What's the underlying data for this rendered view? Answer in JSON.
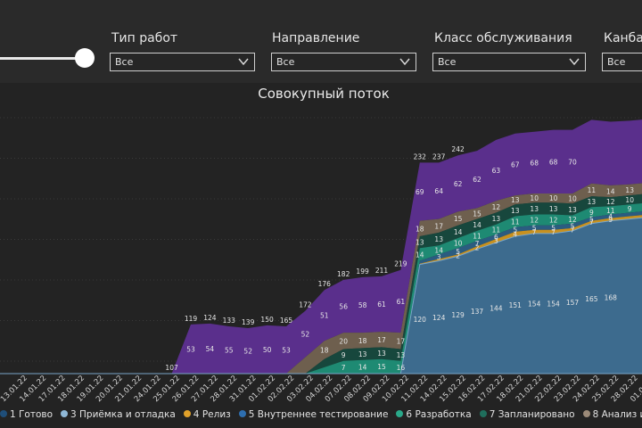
{
  "filters": [
    {
      "label": "Тип работ",
      "value": "Все"
    },
    {
      "label": "Направление",
      "value": "Все"
    },
    {
      "label": "Класс обслуживания",
      "value": "Все"
    },
    {
      "label": "Канбан",
      "value": "Все"
    }
  ],
  "chart_data": {
    "type": "area",
    "title": "Совокупный поток",
    "stacked": true,
    "x": [
      "13.01.22",
      "14.01.22",
      "17.01.22",
      "18.01.22",
      "19.01.22",
      "20.01.22",
      "21.01.22",
      "24.01.22",
      "25.01.22",
      "26.01.22",
      "27.01.22",
      "28.01.22",
      "31.01.22",
      "01.02.22",
      "02.02.22",
      "03.02.22",
      "04.02.22",
      "07.02.22",
      "08.02.22",
      "09.02.22",
      "10.02.22",
      "11.02.22",
      "14.02.22",
      "15.02.22",
      "16.02.22",
      "17.02.22",
      "18.02.22",
      "21.02.22",
      "22.02.22",
      "23.02.22",
      "24.02.22",
      "25.02.22",
      "28.02.22",
      "01.03.22",
      "02.03.22"
    ],
    "series": [
      {
        "name": "1 Готово",
        "color": "#1f4e79",
        "values": [
          0,
          0,
          0,
          0,
          0,
          0,
          0,
          0,
          0,
          0,
          0,
          0,
          0,
          0,
          0,
          0,
          0,
          0,
          0,
          0,
          0,
          0,
          0,
          0,
          0,
          0,
          0,
          0,
          0,
          0,
          0,
          0,
          0,
          0,
          0
        ]
      },
      {
        "name": "3 Приёмка и отладка",
        "color": "#3d6b8e",
        "values": [
          0,
          0,
          0,
          0,
          0,
          0,
          0,
          0,
          0,
          0,
          0,
          0,
          0,
          0,
          0,
          0,
          0,
          0,
          0,
          0,
          0,
          0,
          120,
          124,
          129,
          137,
          144,
          151,
          154,
          154,
          157,
          165,
          168,
          170,
          172
        ]
      },
      {
        "name": "4 Релиз",
        "color": "#c8911f",
        "values": [
          0,
          0,
          0,
          0,
          0,
          0,
          0,
          0,
          0,
          0,
          0,
          0,
          0,
          0,
          0,
          0,
          0,
          0,
          0,
          0,
          0,
          0,
          1,
          2,
          2,
          3,
          4,
          5,
          4,
          4,
          3,
          3,
          3,
          3,
          3
        ]
      },
      {
        "name": "5 Внутреннее тестирование",
        "color": "#2b5c80",
        "values": [
          0,
          0,
          0,
          0,
          0,
          0,
          0,
          0,
          0,
          0,
          0,
          0,
          0,
          0,
          0,
          0,
          0,
          0,
          0,
          0,
          0,
          0,
          3,
          5,
          7,
          6,
          5,
          5,
          5,
          5,
          5,
          4,
          4,
          4,
          4
        ]
      },
      {
        "name": "6 Разработка",
        "color": "#1e8a73",
        "values": [
          0,
          0,
          0,
          0,
          0,
          0,
          0,
          0,
          0,
          0,
          0,
          0,
          0,
          0,
          0,
          0,
          0,
          7,
          14,
          15,
          16,
          14,
          14,
          10,
          11,
          11,
          11,
          12,
          12,
          12,
          9,
          11,
          9,
          9,
          9
        ]
      },
      {
        "name": "7 Запланировано",
        "color": "#17473d",
        "values": [
          0,
          0,
          0,
          0,
          0,
          0,
          0,
          0,
          0,
          0,
          0,
          0,
          0,
          0,
          0,
          0,
          0,
          9,
          13,
          13,
          13,
          13,
          13,
          14,
          14,
          13,
          13,
          13,
          13,
          13,
          13,
          12,
          10,
          10,
          10
        ]
      },
      {
        "name": "8 Анализ и согласование",
        "color": "#6e5f4e",
        "values": [
          0,
          0,
          0,
          0,
          0,
          0,
          0,
          0,
          0,
          0,
          0,
          0,
          0,
          0,
          0,
          0,
          18,
          20,
          18,
          17,
          17,
          18,
          17,
          15,
          15,
          12,
          13,
          10,
          10,
          10,
          11,
          14,
          13,
          12,
          12
        ]
      },
      {
        "name": "Бэклог",
        "color": "#5a2f8c",
        "values": [
          0,
          0,
          0,
          0,
          0,
          0,
          0,
          0,
          0,
          0,
          54,
          55,
          52,
          50,
          53,
          52,
          51,
          56,
          58,
          61,
          61,
          69,
          64,
          62,
          62,
          63,
          67,
          68,
          68,
          70,
          70,
          70,
          70,
          70,
          70
        ]
      }
    ],
    "data_labels": [
      {
        "x": "26.01.22",
        "series": "Бэклог",
        "text": "107"
      },
      {
        "x": "27.01.22",
        "series": "Бэклог",
        "text": "53"
      },
      {
        "x": "27.01.22",
        "series": "Бэклог",
        "text": "119"
      },
      {
        "x": "28.01.22",
        "series": "Бэклог",
        "text": "54"
      },
      {
        "x": "28.01.22",
        "series": "Бэклог",
        "text": "124"
      },
      {
        "x": "31.01.22",
        "series": "Бэклог",
        "text": "55"
      },
      {
        "x": "31.01.22",
        "series": "Бэклог",
        "text": "133"
      },
      {
        "x": "01.02.22",
        "series": "Бэклог",
        "text": "52"
      },
      {
        "x": "01.02.22",
        "series": "Бэклог",
        "text": "139"
      },
      {
        "x": "02.02.22",
        "series": "Бэклог",
        "text": "50"
      },
      {
        "x": "02.02.22",
        "series": "Бэклог",
        "text": "150"
      },
      {
        "x": "03.02.22",
        "series": "Бэклог",
        "text": "53"
      },
      {
        "x": "03.02.22",
        "series": "Бэклог",
        "text": "165"
      },
      {
        "x": "04.02.22",
        "series": "Бэклог",
        "text": "52"
      },
      {
        "x": "04.02.22",
        "series": "Бэклог",
        "text": "172"
      },
      {
        "x": "07.02.22",
        "series": "Бэклог",
        "text": "51"
      },
      {
        "x": "07.02.22",
        "series": "Бэклог",
        "text": "176"
      },
      {
        "x": "08.02.22",
        "series": "Бэклог",
        "text": "56"
      },
      {
        "x": "08.02.22",
        "series": "Бэклог",
        "text": "182"
      },
      {
        "x": "09.02.22",
        "series": "Бэклог",
        "text": "58"
      },
      {
        "x": "09.02.22",
        "series": "Бэклог",
        "text": "199"
      },
      {
        "x": "10.02.22",
        "series": "Бэклог",
        "text": "61"
      },
      {
        "x": "10.02.22",
        "series": "Бэклог",
        "text": "211"
      },
      {
        "x": "11.02.22",
        "series": "Бэклог",
        "text": "61"
      },
      {
        "x": "11.02.22",
        "series": "Бэклог",
        "text": "219"
      },
      {
        "x": "14.02.22",
        "series": "Бэклог",
        "text": "69"
      },
      {
        "x": "14.02.22",
        "series": "Бэклог",
        "text": "232"
      },
      {
        "x": "15.02.22",
        "series": "Бэклог",
        "text": "64"
      },
      {
        "x": "15.02.22",
        "series": "Бэклог",
        "text": "237"
      },
      {
        "x": "16.02.22",
        "series": "Бэклог",
        "text": "62"
      },
      {
        "x": "16.02.22",
        "series": "Бэклог",
        "text": "242"
      },
      {
        "x": "17.02.22",
        "series": "Бэклог",
        "text": "62"
      },
      {
        "x": "18.02.22",
        "series": "Бэклог",
        "text": "63"
      },
      {
        "x": "21.02.22",
        "series": "Бэклог",
        "text": "67"
      },
      {
        "x": "22.02.22",
        "series": "Бэклог",
        "text": "68"
      },
      {
        "x": "23.02.22",
        "series": "Бэклог",
        "text": "68"
      },
      {
        "x": "24.02.22",
        "series": "Бэклог",
        "text": "70"
      },
      {
        "x": "07.02.22",
        "series": "8 Анализ и согласование",
        "text": "18"
      },
      {
        "x": "08.02.22",
        "series": "8 Анализ и согласование",
        "text": "20"
      },
      {
        "x": "09.02.22",
        "series": "8 Анализ и согласование",
        "text": "18"
      },
      {
        "x": "10.02.22",
        "series": "8 Анализ и согласование",
        "text": "17"
      },
      {
        "x": "11.02.22",
        "series": "8 Анализ и согласование",
        "text": "17"
      },
      {
        "x": "14.02.22",
        "series": "8 Анализ и согласование",
        "text": "18"
      },
      {
        "x": "15.02.22",
        "series": "8 Анализ и согласование",
        "text": "17"
      },
      {
        "x": "16.02.22",
        "series": "8 Анализ и согласование",
        "text": "15"
      },
      {
        "x": "17.02.22",
        "series": "8 Анализ и согласование",
        "text": "15"
      },
      {
        "x": "18.02.22",
        "series": "8 Анализ и согласование",
        "text": "12"
      },
      {
        "x": "21.02.22",
        "series": "8 Анализ и согласование",
        "text": "13"
      },
      {
        "x": "22.02.22",
        "series": "8 Анализ и согласование",
        "text": "10"
      },
      {
        "x": "23.02.22",
        "series": "8 Анализ и согласование",
        "text": "10"
      },
      {
        "x": "24.02.22",
        "series": "8 Анализ и согласование",
        "text": "10"
      },
      {
        "x": "25.02.22",
        "series": "8 Анализ и согласование",
        "text": "11"
      },
      {
        "x": "28.02.22",
        "series": "8 Анализ и согласование",
        "text": "14"
      },
      {
        "x": "01.03.22",
        "series": "8 Анализ и согласование",
        "text": "13"
      },
      {
        "x": "08.02.22",
        "series": "7 Запланировано",
        "text": "9"
      },
      {
        "x": "09.02.22",
        "series": "7 Запланировано",
        "text": "13"
      },
      {
        "x": "10.02.22",
        "series": "7 Запланировано",
        "text": "13"
      },
      {
        "x": "11.02.22",
        "series": "7 Запланировано",
        "text": "13"
      },
      {
        "x": "14.02.22",
        "series": "7 Запланировано",
        "text": "13"
      },
      {
        "x": "15.02.22",
        "series": "7 Запланировано",
        "text": "13"
      },
      {
        "x": "16.02.22",
        "series": "7 Запланировано",
        "text": "14"
      },
      {
        "x": "17.02.22",
        "series": "7 Запланировано",
        "text": "14"
      },
      {
        "x": "18.02.22",
        "series": "7 Запланировано",
        "text": "13"
      },
      {
        "x": "21.02.22",
        "series": "7 Запланировано",
        "text": "13"
      },
      {
        "x": "22.02.22",
        "series": "7 Запланировано",
        "text": "13"
      },
      {
        "x": "23.02.22",
        "series": "7 Запланировано",
        "text": "13"
      },
      {
        "x": "24.02.22",
        "series": "7 Запланировано",
        "text": "13"
      },
      {
        "x": "25.02.22",
        "series": "7 Запланировано",
        "text": "13"
      },
      {
        "x": "28.02.22",
        "series": "7 Запланировано",
        "text": "12"
      },
      {
        "x": "01.03.22",
        "series": "7 Запланировано",
        "text": "10"
      },
      {
        "x": "08.02.22",
        "series": "6 Разработка",
        "text": "7"
      },
      {
        "x": "09.02.22",
        "series": "6 Разработка",
        "text": "14"
      },
      {
        "x": "10.02.22",
        "series": "6 Разработка",
        "text": "15"
      },
      {
        "x": "11.02.22",
        "series": "6 Разработка",
        "text": "16"
      },
      {
        "x": "14.02.22",
        "series": "6 Разработка",
        "text": "14"
      },
      {
        "x": "15.02.22",
        "series": "6 Разработка",
        "text": "14"
      },
      {
        "x": "16.02.22",
        "series": "6 Разработка",
        "text": "10"
      },
      {
        "x": "17.02.22",
        "series": "6 Разработка",
        "text": "11"
      },
      {
        "x": "18.02.22",
        "series": "6 Разработка",
        "text": "11"
      },
      {
        "x": "21.02.22",
        "series": "6 Разработка",
        "text": "11"
      },
      {
        "x": "22.02.22",
        "series": "6 Разработка",
        "text": "12"
      },
      {
        "x": "23.02.22",
        "series": "6 Разработка",
        "text": "12"
      },
      {
        "x": "24.02.22",
        "series": "6 Разработка",
        "text": "12"
      },
      {
        "x": "25.02.22",
        "series": "6 Разработка",
        "text": "9"
      },
      {
        "x": "28.02.22",
        "series": "6 Разработка",
        "text": "11"
      },
      {
        "x": "01.03.22",
        "series": "6 Разработка",
        "text": "9"
      },
      {
        "x": "15.02.22",
        "series": "5 Внутреннее тестирование",
        "text": "3"
      },
      {
        "x": "16.02.22",
        "series": "5 Внутреннее тестирование",
        "text": "5"
      },
      {
        "x": "17.02.22",
        "series": "5 Внутреннее тестирование",
        "text": "7"
      },
      {
        "x": "18.02.22",
        "series": "5 Внутреннее тестирование",
        "text": "6"
      },
      {
        "x": "21.02.22",
        "series": "5 Внутреннее тестирование",
        "text": "5"
      },
      {
        "x": "22.02.22",
        "series": "5 Внутреннее тестирование",
        "text": "5"
      },
      {
        "x": "23.02.22",
        "series": "5 Внутреннее тестирование",
        "text": "5"
      },
      {
        "x": "24.02.22",
        "series": "5 Внутреннее тестирование",
        "text": "5"
      },
      {
        "x": "25.02.22",
        "series": "5 Внутреннее тестирование",
        "text": "5"
      },
      {
        "x": "28.02.22",
        "series": "5 Внутреннее тестирование",
        "text": "4"
      },
      {
        "x": "16.02.22",
        "series": "4 Релиз",
        "text": "2"
      },
      {
        "x": "17.02.22",
        "series": "4 Релиз",
        "text": "2"
      },
      {
        "x": "18.02.22",
        "series": "4 Релиз",
        "text": "3"
      },
      {
        "x": "21.02.22",
        "series": "4 Релиз",
        "text": "4"
      },
      {
        "x": "22.02.22",
        "series": "4 Релиз",
        "text": "7"
      },
      {
        "x": "23.02.22",
        "series": "4 Релиз",
        "text": "7"
      },
      {
        "x": "24.02.22",
        "series": "4 Релиз",
        "text": "7"
      },
      {
        "x": "25.02.22",
        "series": "4 Релиз",
        "text": "7"
      },
      {
        "x": "28.02.22",
        "series": "4 Релиз",
        "text": "9"
      },
      {
        "x": "14.02.22",
        "series": "3 Приёмка и отладка",
        "text": "120"
      },
      {
        "x": "15.02.22",
        "series": "3 Приёмка и отладка",
        "text": "124"
      },
      {
        "x": "16.02.22",
        "series": "3 Приёмка и отладка",
        "text": "129"
      },
      {
        "x": "17.02.22",
        "series": "3 Приёмка и отладка",
        "text": "137"
      },
      {
        "x": "18.02.22",
        "series": "3 Приёмка и отладка",
        "text": "144"
      },
      {
        "x": "21.02.22",
        "series": "3 Приёмка и отладка",
        "text": "151"
      },
      {
        "x": "22.02.22",
        "series": "3 Приёмка и отладка",
        "text": "154"
      },
      {
        "x": "23.02.22",
        "series": "3 Приёмка и отладка",
        "text": "154"
      },
      {
        "x": "24.02.22",
        "series": "3 Приёмка и отладка",
        "text": "157"
      },
      {
        "x": "25.02.22",
        "series": "3 Приёмка и отладка",
        "text": "165"
      },
      {
        "x": "28.02.22",
        "series": "3 Приёмка и отладка",
        "text": "168"
      }
    ],
    "legend_position": "bottom",
    "grid": true
  },
  "legend": [
    {
      "label": "1 Готово",
      "color": "#1f4e79"
    },
    {
      "label": "3 Приёмка и отладка",
      "color": "#8fb8d6"
    },
    {
      "label": "4 Релиз",
      "color": "#e0a12a"
    },
    {
      "label": "5 Внутреннее тестирование",
      "color": "#2e6fb0"
    },
    {
      "label": "6 Разработка",
      "color": "#2aa98a"
    },
    {
      "label": "7 Запланировано",
      "color": "#1f6e5c"
    },
    {
      "label": "8 Анализ и согласование",
      "color": "#9b8a78"
    }
  ]
}
